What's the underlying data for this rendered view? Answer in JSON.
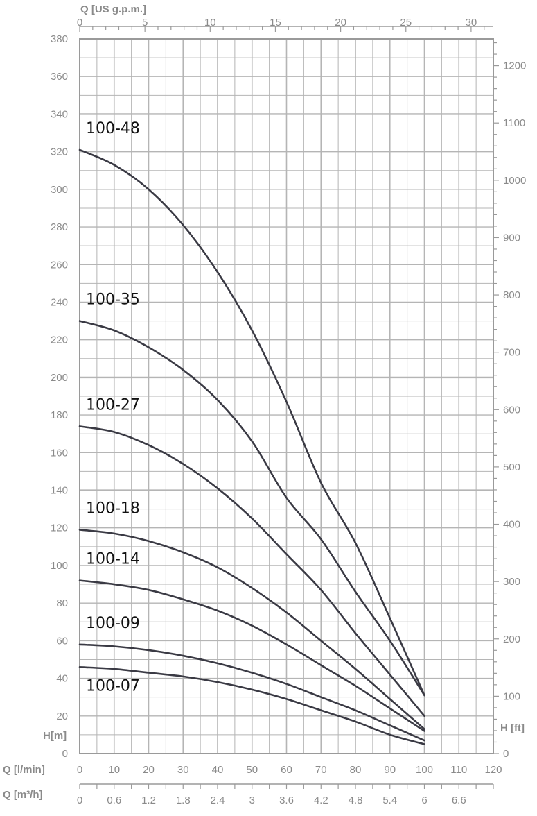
{
  "chart_data": {
    "type": "line",
    "title": "",
    "xlabel": "Q [l/min]",
    "ylabel": "H[m]",
    "x_secondary_top_label": "Q [US g.p.m.]",
    "x_secondary_bottom_label": "Q [m³/h]",
    "y_secondary_label": "H [ft]",
    "xlim": [
      0,
      120
    ],
    "ylim": [
      0,
      380
    ],
    "grid": true,
    "x_ticks": [
      "0",
      "10",
      "20",
      "30",
      "40",
      "50",
      "60",
      "70",
      "80",
      "90",
      "100",
      "110",
      "120"
    ],
    "y_ticks": [
      "0",
      "20",
      "40",
      "60",
      "80",
      "100",
      "120",
      "140",
      "160",
      "180",
      "200",
      "220",
      "240",
      "260",
      "280",
      "300",
      "320",
      "340",
      "360",
      "380"
    ],
    "top_ticks": [
      "0",
      "5",
      "10",
      "15",
      "20",
      "25",
      "30"
    ],
    "m3h_ticks": [
      "0",
      "0.6",
      "1.2",
      "1.8",
      "2.4",
      "3",
      "3.6",
      "4.2",
      "4.8",
      "5.4",
      "6",
      "6.6"
    ],
    "ft_ticks": [
      "0",
      "100",
      "200",
      "300",
      "400",
      "500",
      "600",
      "700",
      "800",
      "900",
      "1000",
      "1100",
      "1200"
    ],
    "series": [
      {
        "name": "100-48",
        "x": [
          0,
          10,
          20,
          30,
          40,
          50,
          60,
          70,
          80,
          90,
          100
        ],
        "y": [
          321,
          313,
          300,
          281,
          256,
          225,
          187,
          144,
          112,
          72,
          31
        ]
      },
      {
        "name": "100-35",
        "x": [
          0,
          10,
          20,
          30,
          40,
          50,
          60,
          70,
          80,
          90,
          100
        ],
        "y": [
          230,
          225,
          216,
          204,
          188,
          166,
          136,
          114,
          86,
          60,
          31
        ]
      },
      {
        "name": "100-27",
        "x": [
          0,
          10,
          20,
          30,
          40,
          50,
          60,
          70,
          80,
          90,
          100
        ],
        "y": [
          174,
          171,
          164,
          154,
          141,
          125,
          106,
          87,
          64,
          42,
          20
        ]
      },
      {
        "name": "100-18",
        "x": [
          0,
          10,
          20,
          30,
          40,
          50,
          60,
          70,
          80,
          90,
          100
        ],
        "y": [
          119,
          117,
          113,
          107,
          99,
          88,
          75,
          60,
          45,
          29,
          13
        ]
      },
      {
        "name": "100-14",
        "x": [
          0,
          10,
          20,
          30,
          40,
          50,
          60,
          70,
          80,
          90,
          100
        ],
        "y": [
          92,
          90,
          87,
          82,
          76,
          68,
          58,
          47,
          36,
          24,
          12
        ]
      },
      {
        "name": "100-09",
        "x": [
          0,
          10,
          20,
          30,
          40,
          50,
          60,
          70,
          80,
          90,
          100
        ],
        "y": [
          58,
          57,
          55,
          52,
          48,
          43,
          37,
          30,
          23,
          15,
          7
        ]
      },
      {
        "name": "100-07",
        "x": [
          0,
          10,
          20,
          30,
          40,
          50,
          60,
          70,
          80,
          90,
          100
        ],
        "y": [
          46,
          45,
          43,
          41,
          38,
          34,
          29,
          23,
          17,
          10,
          5
        ]
      }
    ]
  }
}
